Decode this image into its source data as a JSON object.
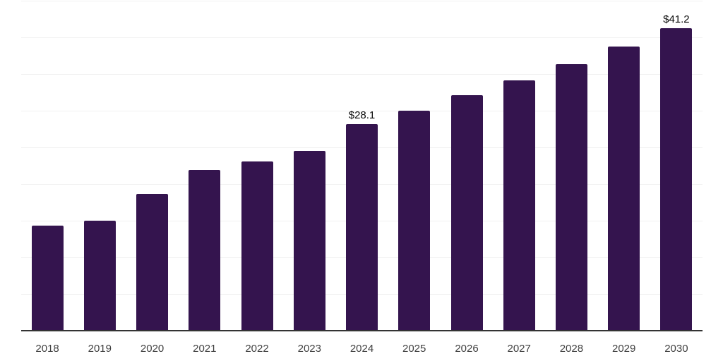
{
  "chart_data": {
    "type": "bar",
    "title": "",
    "xlabel": "",
    "ylabel": "",
    "categories": [
      "2018",
      "2019",
      "2020",
      "2021",
      "2022",
      "2023",
      "2024",
      "2025",
      "2026",
      "2027",
      "2028",
      "2029",
      "2030"
    ],
    "values": [
      14.3,
      15.0,
      18.6,
      21.9,
      23.1,
      24.5,
      28.1,
      30.0,
      32.1,
      34.1,
      36.3,
      38.7,
      41.2
    ],
    "data_labels": [
      {
        "category": "2024",
        "text": "$28.1"
      },
      {
        "category": "2030",
        "text": "$41.2"
      }
    ],
    "ylim": [
      0,
      45
    ],
    "gridline_step": 5,
    "grid": "horizontal-only",
    "legend": "none",
    "y_tick_labels_visible": false,
    "colors": {
      "bar": "#34144e",
      "gridline": "#f1f1f1",
      "axis_line": "#333333",
      "tick_label": "#404040",
      "data_label": "#0a0a0a",
      "background": "#ffffff"
    }
  }
}
